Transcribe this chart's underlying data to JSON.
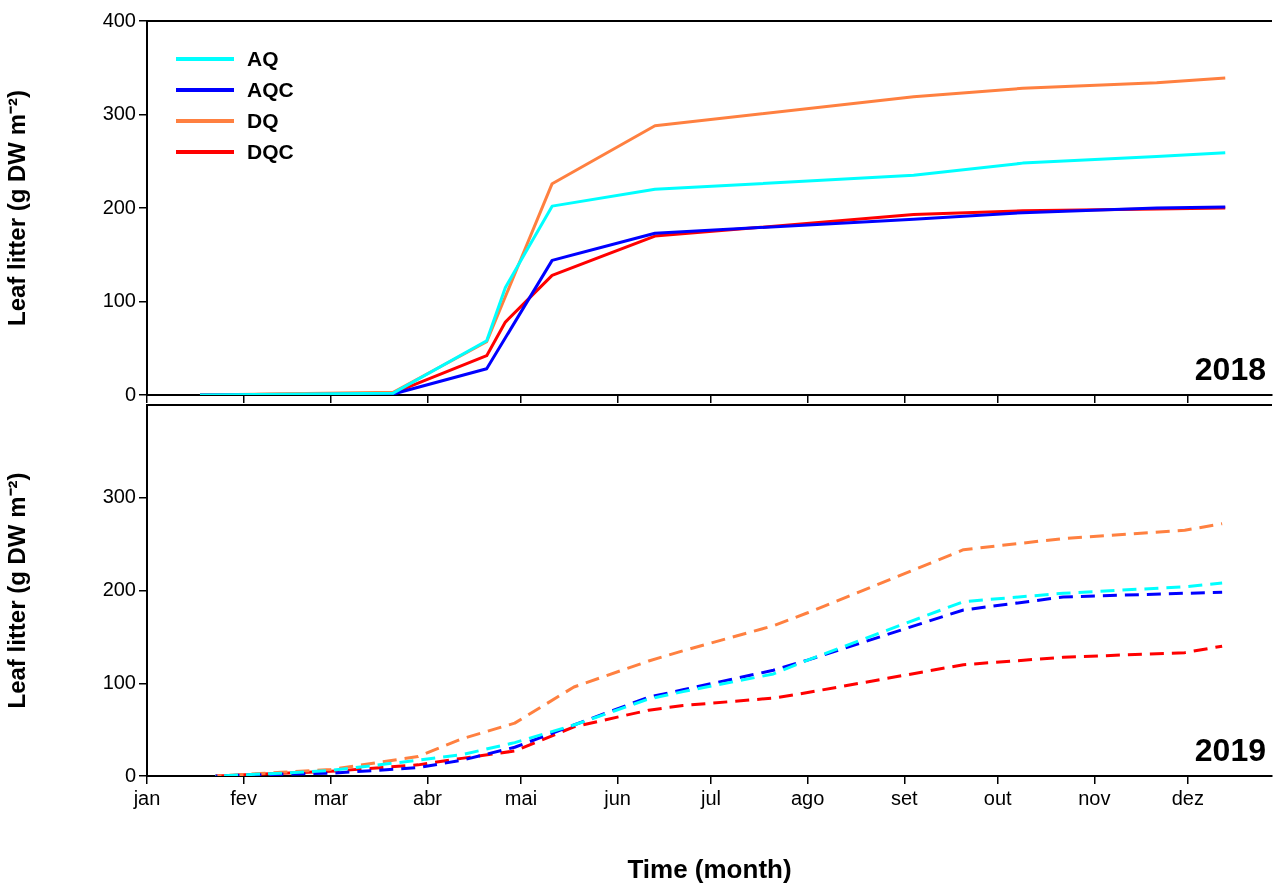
{
  "chart_data": [
    {
      "type": "line",
      "ylabel": "Leaf litter (g DW m⁻²)",
      "annotations": [
        "2018"
      ],
      "xlim": [
        "--01-01",
        "--12-28"
      ],
      "xticks": [
        {
          "value": "--01-01",
          "label": null
        },
        {
          "value": "--02-01",
          "label": null
        },
        {
          "value": "--03-01",
          "label": null
        },
        {
          "value": "--04-01",
          "label": null
        },
        {
          "value": "--05-01",
          "label": null
        },
        {
          "value": "--06-01",
          "label": null
        },
        {
          "value": "--07-01",
          "label": null
        },
        {
          "value": "--08-01",
          "label": null
        },
        {
          "value": "--09-01",
          "label": null
        },
        {
          "value": "--10-01",
          "label": null
        },
        {
          "value": "--11-01",
          "label": null
        },
        {
          "value": "--12-01",
          "label": null
        }
      ],
      "ylim": [
        0,
        400
      ],
      "yticks": [
        0,
        100,
        200,
        300,
        400
      ],
      "tick_labels": "y",
      "grid": false,
      "legend": "top left",
      "marker": "none",
      "line_style": "solid",
      "series": [
        {
          "name": "AQ",
          "color": "#00ffff",
          "x": [
            "--01-18",
            "--03-21",
            "--04-20",
            "--04-26",
            "--05-11",
            "--06-13",
            "--09-04",
            "--10-09",
            "--11-21",
            "--12-13"
          ],
          "values": [
            0,
            2,
            58,
            115,
            202,
            220,
            235,
            248,
            255,
            259
          ]
        },
        {
          "name": "AQC",
          "color": "#0000ff",
          "x": [
            "--01-18",
            "--03-21",
            "--04-20",
            "--05-11",
            "--06-13",
            "--09-04",
            "--10-09",
            "--11-21",
            "--12-13"
          ],
          "values": [
            0,
            1,
            28,
            144,
            173,
            188,
            195,
            200,
            201
          ]
        },
        {
          "name": "DQ",
          "color": "#ff8040",
          "x": [
            "--01-18",
            "--03-21",
            "--04-20",
            "--05-11",
            "--06-13",
            "--09-04",
            "--10-09",
            "--11-21",
            "--12-13"
          ],
          "values": [
            0,
            3,
            57,
            226,
            288,
            319,
            328,
            334,
            339
          ]
        },
        {
          "name": "DQC",
          "color": "#ff0000",
          "x": [
            "--01-18",
            "--03-21",
            "--04-20",
            "--04-26",
            "--05-11",
            "--06-13",
            "--09-04",
            "--10-09",
            "--11-21",
            "--12-13"
          ],
          "values": [
            0,
            2,
            42,
            78,
            128,
            170,
            193,
            197,
            199,
            200
          ]
        }
      ]
    },
    {
      "type": "line",
      "xlabel": "Time (month)",
      "ylabel": "Leaf litter (g DW m⁻²)",
      "annotations": [
        "2019"
      ],
      "xlim": [
        "--01-01",
        "--12-28"
      ],
      "xticks": [
        {
          "value": "--01-01",
          "label": "jan"
        },
        {
          "value": "--02-01",
          "label": "fev"
        },
        {
          "value": "--03-01",
          "label": "mar"
        },
        {
          "value": "--04-01",
          "label": "abr"
        },
        {
          "value": "--05-01",
          "label": "mai"
        },
        {
          "value": "--06-01",
          "label": "jun"
        },
        {
          "value": "--07-01",
          "label": "jul"
        },
        {
          "value": "--08-01",
          "label": "ago"
        },
        {
          "value": "--09-01",
          "label": "set"
        },
        {
          "value": "--10-01",
          "label": "out"
        },
        {
          "value": "--11-01",
          "label": "nov"
        },
        {
          "value": "--12-01",
          "label": "dez"
        }
      ],
      "ylim": [
        0,
        400
      ],
      "yticks": [
        0,
        100,
        200,
        300
      ],
      "grid": false,
      "marker": "none",
      "line_style": "dashed",
      "x": [
        "--01-23",
        "--02-13",
        "--03-01",
        "--03-29",
        "--04-12",
        "--04-29",
        "--05-18",
        "--06-11",
        "--06-22",
        "--07-21",
        "--08-01",
        "--09-20",
        "--10-22",
        "--11-30",
        "--12-12"
      ],
      "series": [
        {
          "color": "#00ffff",
          "values": [
            0,
            3,
            6,
            17,
            23,
            36,
            55,
            83,
            91,
            110,
            125,
            188,
            197,
            204,
            208
          ]
        },
        {
          "color": "#0000ff",
          "values": [
            0,
            2,
            3,
            9,
            17,
            31,
            55,
            85,
            93,
            114,
            125,
            179,
            193,
            197,
            198
          ]
        },
        {
          "color": "#ff8040",
          "values": [
            0,
            4,
            7,
            21,
            40,
            57,
            96,
            124,
            135,
            162,
            176,
            244,
            256,
            265,
            272
          ]
        },
        {
          "color": "#ff0000",
          "values": [
            0,
            3,
            5,
            12,
            19,
            27,
            53,
            71,
            76,
            84,
            90,
            120,
            128,
            133,
            140
          ]
        }
      ]
    }
  ]
}
